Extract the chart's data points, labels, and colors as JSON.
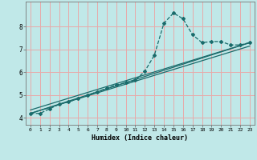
{
  "xlabel": "Humidex (Indice chaleur)",
  "background_color": "#c0e8e8",
  "grid_color": "#e8aaaa",
  "line_color": "#1a6b6b",
  "xlim": [
    -0.5,
    23.5
  ],
  "ylim": [
    3.7,
    9.1
  ],
  "yticks": [
    4,
    5,
    6,
    7,
    8
  ],
  "xticks": [
    0,
    1,
    2,
    3,
    4,
    5,
    6,
    7,
    8,
    9,
    10,
    11,
    12,
    13,
    14,
    15,
    16,
    17,
    18,
    19,
    20,
    21,
    22,
    23
  ],
  "xtick_labels": [
    "0",
    "1",
    "2",
    "3",
    "4",
    "5",
    "6",
    "7",
    "8",
    "9",
    "10",
    "11",
    "12",
    "13",
    "14",
    "15",
    "16",
    "17",
    "18",
    "19",
    "20",
    "21",
    "22",
    "23"
  ],
  "main_x": [
    0,
    1,
    2,
    3,
    4,
    5,
    6,
    7,
    8,
    9,
    10,
    11,
    12,
    13,
    14,
    15,
    16,
    17,
    18,
    19,
    20,
    21,
    22,
    23
  ],
  "main_y": [
    4.2,
    4.2,
    4.4,
    4.6,
    4.7,
    4.85,
    5.0,
    5.15,
    5.3,
    5.45,
    5.55,
    5.65,
    6.05,
    6.75,
    8.15,
    8.6,
    8.35,
    7.65,
    7.3,
    7.35,
    7.35,
    7.2,
    7.2,
    7.3
  ],
  "trend1_x": [
    0,
    23
  ],
  "trend1_y": [
    4.2,
    7.3
  ],
  "trend2_x": [
    0,
    23
  ],
  "trend2_y": [
    4.35,
    7.3
  ],
  "trend3_x": [
    0,
    23
  ],
  "trend3_y": [
    4.2,
    7.15
  ]
}
